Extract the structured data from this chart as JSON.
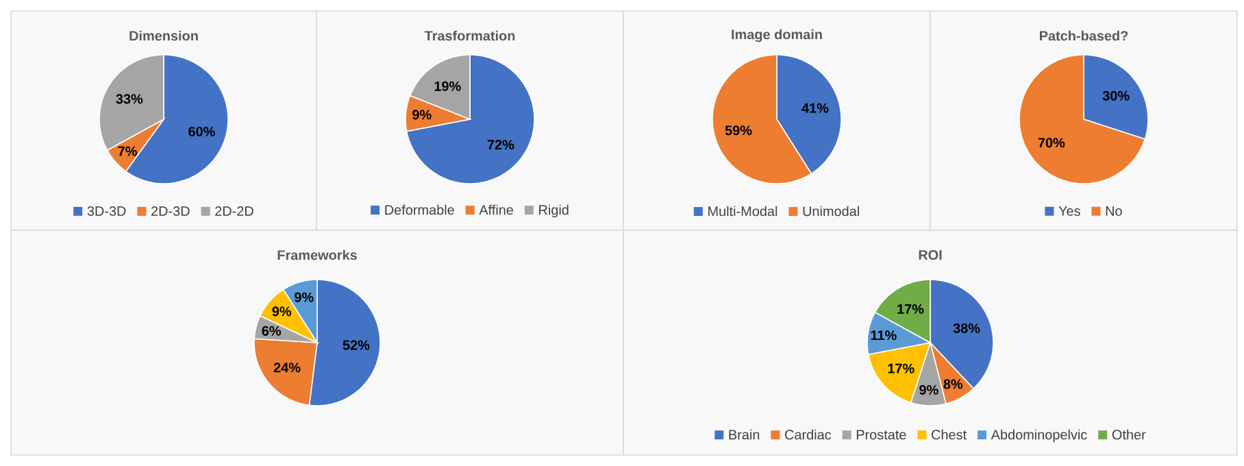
{
  "chart_data": [
    {
      "type": "pie",
      "title": "Dimension",
      "categories": [
        "3D-3D",
        "2D-3D",
        "2D-2D"
      ],
      "values": [
        60,
        7,
        33
      ],
      "value_labels": [
        "60%",
        "7%",
        "33%"
      ],
      "colors": [
        "#4472c4",
        "#ed7d31",
        "#a5a5a5"
      ],
      "legend": "bottom"
    },
    {
      "type": "pie",
      "title": "Trasformation",
      "categories": [
        "Deformable",
        "Affine",
        "Rigid"
      ],
      "values": [
        72,
        9,
        19
      ],
      "value_labels": [
        "72%",
        "9%",
        "19%"
      ],
      "colors": [
        "#4472c4",
        "#ed7d31",
        "#a5a5a5"
      ],
      "legend": "bottom"
    },
    {
      "type": "pie",
      "title": "Image domain",
      "categories": [
        "Multi-Modal",
        "Unimodal"
      ],
      "values": [
        41,
        59
      ],
      "value_labels": [
        "41%",
        "59%"
      ],
      "colors": [
        "#4472c4",
        "#ed7d31"
      ],
      "legend": "bottom"
    },
    {
      "type": "pie",
      "title": "Patch-based?",
      "categories": [
        "Yes",
        "No"
      ],
      "values": [
        30,
        70
      ],
      "value_labels": [
        "30%",
        "70%"
      ],
      "colors": [
        "#4472c4",
        "#ed7d31"
      ],
      "legend": "bottom"
    },
    {
      "type": "pie",
      "title": "Frameworks",
      "categories": [
        null,
        null,
        null,
        null,
        null
      ],
      "values": [
        52,
        24,
        6,
        9,
        9
      ],
      "value_labels": [
        "52%",
        "24%",
        "6%",
        "9%",
        "9%"
      ],
      "colors": [
        "#4472c4",
        "#ed7d31",
        "#a5a5a5",
        "#ffc000",
        "#5b9bd5"
      ]
    },
    {
      "type": "pie",
      "title": "ROI",
      "categories": [
        "Brain",
        "Cardiac",
        "Prostate",
        "Chest",
        "Abdominopelvic",
        "Other"
      ],
      "values": [
        38,
        8,
        9,
        17,
        11,
        17
      ],
      "value_labels": [
        "38%",
        "8%",
        "9%",
        "17%",
        "11%",
        "17%"
      ],
      "colors": [
        "#4472c4",
        "#ed7d31",
        "#a5a5a5",
        "#ffc000",
        "#5b9bd5",
        "#70ad47"
      ],
      "legend": "bottom"
    }
  ]
}
